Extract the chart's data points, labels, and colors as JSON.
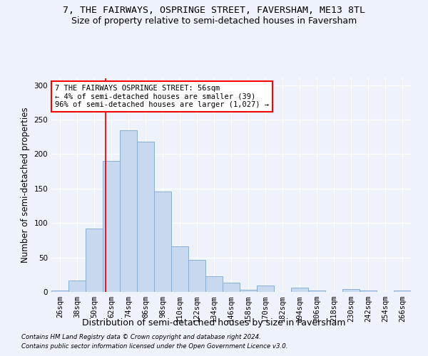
{
  "title": "7, THE FAIRWAYS, OSPRINGE STREET, FAVERSHAM, ME13 8TL",
  "subtitle": "Size of property relative to semi-detached houses in Faversham",
  "xlabel": "Distribution of semi-detached houses by size in Faversham",
  "ylabel": "Number of semi-detached properties",
  "bar_color": "#c8d8ef",
  "bar_edge_color": "#8aaed4",
  "categories": [
    "26sqm",
    "38sqm",
    "50sqm",
    "62sqm",
    "74sqm",
    "86sqm",
    "98sqm",
    "110sqm",
    "122sqm",
    "134sqm",
    "146sqm",
    "158sqm",
    "170sqm",
    "182sqm",
    "194sqm",
    "206sqm",
    "218sqm",
    "230sqm",
    "242sqm",
    "254sqm",
    "266sqm"
  ],
  "values": [
    2,
    17,
    92,
    190,
    235,
    218,
    146,
    66,
    46,
    23,
    13,
    3,
    9,
    0,
    6,
    2,
    0,
    4,
    2,
    0,
    2
  ],
  "red_line_x": 2.67,
  "annotation_text": "7 THE FAIRWAYS OSPRINGE STREET: 56sqm\n← 4% of semi-detached houses are smaller (39)\n96% of semi-detached houses are larger (1,027) →",
  "annotation_box_color": "white",
  "annotation_box_edge_color": "red",
  "ylim": [
    0,
    310
  ],
  "yticks": [
    0,
    50,
    100,
    150,
    200,
    250,
    300
  ],
  "footnote1": "Contains HM Land Registry data © Crown copyright and database right 2024.",
  "footnote2": "Contains public sector information licensed under the Open Government Licence v3.0.",
  "background_color": "#eef2fb",
  "grid_color": "white",
  "title_fontsize": 9.5,
  "subtitle_fontsize": 9,
  "axis_label_fontsize": 8.5,
  "tick_fontsize": 7.5,
  "annotation_fontsize": 7.5
}
